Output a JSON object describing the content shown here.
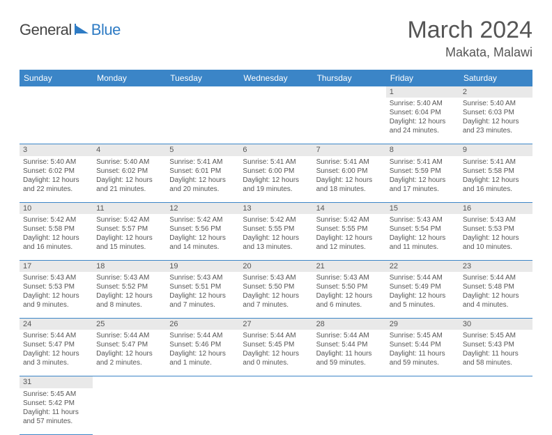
{
  "logo": {
    "text1": "General",
    "text2": "Blue"
  },
  "title": "March 2024",
  "location": "Makata, Malawi",
  "colors": {
    "header_bg": "#3b85c7",
    "header_fg": "#ffffff",
    "daynum_bg": "#e9e9e9",
    "text": "#555555",
    "row_border": "#3b85c7",
    "logo_blue": "#2e7bc4",
    "logo_gray": "#444444"
  },
  "weekdays": [
    "Sunday",
    "Monday",
    "Tuesday",
    "Wednesday",
    "Thursday",
    "Friday",
    "Saturday"
  ],
  "weeks": [
    [
      null,
      null,
      null,
      null,
      null,
      {
        "d": "1",
        "sr": "5:40 AM",
        "ss": "6:04 PM",
        "dl": "12 hours and 24 minutes."
      },
      {
        "d": "2",
        "sr": "5:40 AM",
        "ss": "6:03 PM",
        "dl": "12 hours and 23 minutes."
      }
    ],
    [
      {
        "d": "3",
        "sr": "5:40 AM",
        "ss": "6:02 PM",
        "dl": "12 hours and 22 minutes."
      },
      {
        "d": "4",
        "sr": "5:40 AM",
        "ss": "6:02 PM",
        "dl": "12 hours and 21 minutes."
      },
      {
        "d": "5",
        "sr": "5:41 AM",
        "ss": "6:01 PM",
        "dl": "12 hours and 20 minutes."
      },
      {
        "d": "6",
        "sr": "5:41 AM",
        "ss": "6:00 PM",
        "dl": "12 hours and 19 minutes."
      },
      {
        "d": "7",
        "sr": "5:41 AM",
        "ss": "6:00 PM",
        "dl": "12 hours and 18 minutes."
      },
      {
        "d": "8",
        "sr": "5:41 AM",
        "ss": "5:59 PM",
        "dl": "12 hours and 17 minutes."
      },
      {
        "d": "9",
        "sr": "5:41 AM",
        "ss": "5:58 PM",
        "dl": "12 hours and 16 minutes."
      }
    ],
    [
      {
        "d": "10",
        "sr": "5:42 AM",
        "ss": "5:58 PM",
        "dl": "12 hours and 16 minutes."
      },
      {
        "d": "11",
        "sr": "5:42 AM",
        "ss": "5:57 PM",
        "dl": "12 hours and 15 minutes."
      },
      {
        "d": "12",
        "sr": "5:42 AM",
        "ss": "5:56 PM",
        "dl": "12 hours and 14 minutes."
      },
      {
        "d": "13",
        "sr": "5:42 AM",
        "ss": "5:55 PM",
        "dl": "12 hours and 13 minutes."
      },
      {
        "d": "14",
        "sr": "5:42 AM",
        "ss": "5:55 PM",
        "dl": "12 hours and 12 minutes."
      },
      {
        "d": "15",
        "sr": "5:43 AM",
        "ss": "5:54 PM",
        "dl": "12 hours and 11 minutes."
      },
      {
        "d": "16",
        "sr": "5:43 AM",
        "ss": "5:53 PM",
        "dl": "12 hours and 10 minutes."
      }
    ],
    [
      {
        "d": "17",
        "sr": "5:43 AM",
        "ss": "5:53 PM",
        "dl": "12 hours and 9 minutes."
      },
      {
        "d": "18",
        "sr": "5:43 AM",
        "ss": "5:52 PM",
        "dl": "12 hours and 8 minutes."
      },
      {
        "d": "19",
        "sr": "5:43 AM",
        "ss": "5:51 PM",
        "dl": "12 hours and 7 minutes."
      },
      {
        "d": "20",
        "sr": "5:43 AM",
        "ss": "5:50 PM",
        "dl": "12 hours and 7 minutes."
      },
      {
        "d": "21",
        "sr": "5:43 AM",
        "ss": "5:50 PM",
        "dl": "12 hours and 6 minutes."
      },
      {
        "d": "22",
        "sr": "5:44 AM",
        "ss": "5:49 PM",
        "dl": "12 hours and 5 minutes."
      },
      {
        "d": "23",
        "sr": "5:44 AM",
        "ss": "5:48 PM",
        "dl": "12 hours and 4 minutes."
      }
    ],
    [
      {
        "d": "24",
        "sr": "5:44 AM",
        "ss": "5:47 PM",
        "dl": "12 hours and 3 minutes."
      },
      {
        "d": "25",
        "sr": "5:44 AM",
        "ss": "5:47 PM",
        "dl": "12 hours and 2 minutes."
      },
      {
        "d": "26",
        "sr": "5:44 AM",
        "ss": "5:46 PM",
        "dl": "12 hours and 1 minute."
      },
      {
        "d": "27",
        "sr": "5:44 AM",
        "ss": "5:45 PM",
        "dl": "12 hours and 0 minutes."
      },
      {
        "d": "28",
        "sr": "5:44 AM",
        "ss": "5:44 PM",
        "dl": "11 hours and 59 minutes."
      },
      {
        "d": "29",
        "sr": "5:45 AM",
        "ss": "5:44 PM",
        "dl": "11 hours and 59 minutes."
      },
      {
        "d": "30",
        "sr": "5:45 AM",
        "ss": "5:43 PM",
        "dl": "11 hours and 58 minutes."
      }
    ],
    [
      {
        "d": "31",
        "sr": "5:45 AM",
        "ss": "5:42 PM",
        "dl": "11 hours and 57 minutes."
      },
      null,
      null,
      null,
      null,
      null,
      null
    ]
  ],
  "labels": {
    "sunrise": "Sunrise:",
    "sunset": "Sunset:",
    "daylight": "Daylight:"
  }
}
